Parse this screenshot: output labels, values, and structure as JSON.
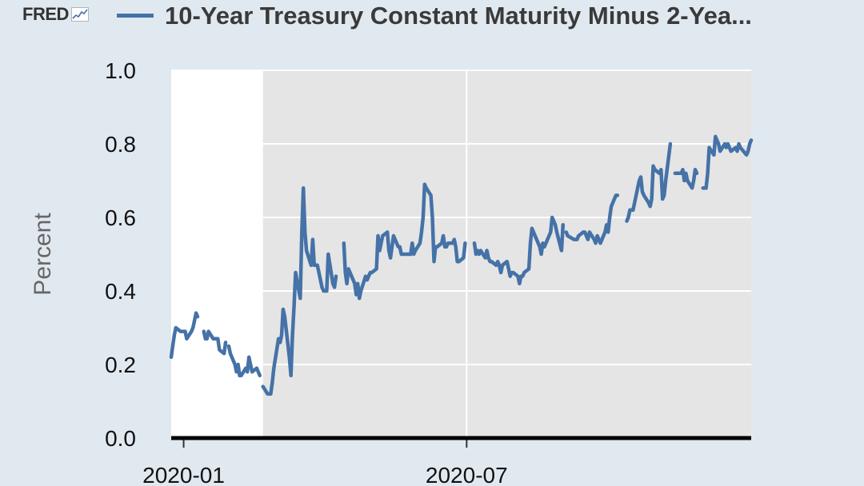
{
  "header": {
    "logo": "FRED",
    "logo_icon": "line-chart-icon",
    "title": "10-Year Treasury Constant Maturity Minus 2-Yea..."
  },
  "colors": {
    "background": "#e1e9f0",
    "plot_white": "#ffffff",
    "plot_shade": "#e5e5e5",
    "series": "#4572a7",
    "grid": "#ffffff",
    "axis": "#000000"
  },
  "chart_data": {
    "type": "line",
    "title": "10-Year Treasury Constant Maturity Minus 2-Yea...",
    "xlabel": "",
    "ylabel": "Percent",
    "ylim": [
      0,
      1.0
    ],
    "yticks": [
      "0.0",
      "0.2",
      "0.4",
      "0.6",
      "0.8",
      "1.0"
    ],
    "xticks": [
      {
        "date": "2020-01-01",
        "label": "2020-01"
      },
      {
        "date": "2020-07-01",
        "label": "2020-07"
      }
    ],
    "xlim": [
      "2019-12-24",
      "2020-12-31"
    ],
    "grid": true,
    "shaded_region": {
      "start": "2020-02-21",
      "end": "2020-12-31",
      "label": ""
    },
    "series": [
      {
        "values_description": "daily spread",
        "points": [
          [
            "2019-12-24",
            0.22
          ],
          [
            "2019-12-25",
            0.25
          ],
          [
            "2019-12-26",
            0.28
          ],
          [
            "2019-12-27",
            0.3
          ],
          [
            "2019-12-30",
            0.29
          ],
          [
            "2019-12-31",
            0.29
          ],
          [
            "2020-01-02",
            0.29
          ],
          [
            "2020-01-03",
            0.27
          ],
          [
            "2020-01-06",
            0.29
          ],
          [
            "2020-01-07",
            0.3
          ],
          [
            "2020-01-08",
            0.32
          ],
          [
            "2020-01-09",
            0.34
          ],
          [
            "2020-01-10",
            0.33
          ],
          [
            "2020-01-13",
            null
          ],
          [
            "2020-01-14",
            0.29
          ],
          [
            "2020-01-15",
            0.27
          ],
          [
            "2020-01-16",
            0.27
          ],
          [
            "2020-01-17",
            0.29
          ],
          [
            "2020-01-20",
            0.27
          ],
          [
            "2020-01-21",
            0.27
          ],
          [
            "2020-01-22",
            0.27
          ],
          [
            "2020-01-23",
            0.27
          ],
          [
            "2020-01-24",
            0.24
          ],
          [
            "2020-01-27",
            0.23
          ],
          [
            "2020-01-28",
            0.26
          ],
          [
            "2020-01-29",
            null
          ],
          [
            "2020-01-30",
            0.25
          ],
          [
            "2020-01-31",
            0.23
          ],
          [
            "2020-02-03",
            0.2
          ],
          [
            "2020-02-04",
            0.18
          ],
          [
            "2020-02-05",
            0.2
          ],
          [
            "2020-02-06",
            0.17
          ],
          [
            "2020-02-07",
            0.17
          ],
          [
            "2020-02-10",
            0.19
          ],
          [
            "2020-02-11",
            0.18
          ],
          [
            "2020-02-12",
            0.22
          ],
          [
            "2020-02-13",
            0.2
          ],
          [
            "2020-02-14",
            0.18
          ],
          [
            "2020-02-17",
            0.19
          ],
          [
            "2020-02-18",
            0.18
          ],
          [
            "2020-02-19",
            0.17
          ],
          [
            "2020-02-20",
            null
          ],
          [
            "2020-02-21",
            0.14
          ],
          [
            "2020-02-24",
            0.12
          ],
          [
            "2020-02-25",
            0.12
          ],
          [
            "2020-02-26",
            0.12
          ],
          [
            "2020-02-27",
            0.15
          ],
          [
            "2020-02-28",
            0.19
          ],
          [
            "2020-03-02",
            0.27
          ],
          [
            "2020-03-03",
            0.26
          ],
          [
            "2020-03-04",
            0.28
          ],
          [
            "2020-03-05",
            0.35
          ],
          [
            "2020-03-06",
            0.33
          ],
          [
            "2020-03-09",
            0.22
          ],
          [
            "2020-03-10",
            0.17
          ],
          [
            "2020-03-11",
            0.28
          ],
          [
            "2020-03-12",
            0.36
          ],
          [
            "2020-03-13",
            0.45
          ],
          [
            "2020-03-16",
            0.38
          ],
          [
            "2020-03-17",
            0.56
          ],
          [
            "2020-03-18",
            0.68
          ],
          [
            "2020-03-19",
            0.56
          ],
          [
            "2020-03-20",
            0.51
          ],
          [
            "2020-03-23",
            0.47
          ],
          [
            "2020-03-24",
            0.54
          ],
          [
            "2020-03-25",
            0.47
          ],
          [
            "2020-03-26",
            0.47
          ],
          [
            "2020-03-27",
            0.47
          ],
          [
            "2020-03-30",
            0.41
          ],
          [
            "2020-03-31",
            0.4
          ],
          [
            "2020-04-01",
            0.4
          ],
          [
            "2020-04-02",
            0.4
          ],
          [
            "2020-04-03",
            0.5
          ],
          [
            "2020-04-06",
            0.42
          ],
          [
            "2020-04-07",
            0.41
          ],
          [
            "2020-04-08",
            0.44
          ],
          [
            "2020-04-09",
            null
          ],
          [
            "2020-04-13",
            0.53
          ],
          [
            "2020-04-14",
            0.45
          ],
          [
            "2020-04-15",
            0.42
          ],
          [
            "2020-04-16",
            0.46
          ],
          [
            "2020-04-17",
            0.45
          ],
          [
            "2020-04-20",
            0.42
          ],
          [
            "2020-04-21",
            0.39
          ],
          [
            "2020-04-22",
            0.42
          ],
          [
            "2020-04-23",
            0.38
          ],
          [
            "2020-04-24",
            0.4
          ],
          [
            "2020-04-27",
            0.44
          ],
          [
            "2020-04-28",
            0.43
          ],
          [
            "2020-04-29",
            0.44
          ],
          [
            "2020-04-30",
            0.45
          ],
          [
            "2020-05-01",
            0.45
          ],
          [
            "2020-05-04",
            0.46
          ],
          [
            "2020-05-05",
            0.55
          ],
          [
            "2020-05-06",
            0.51
          ],
          [
            "2020-05-07",
            0.53
          ],
          [
            "2020-05-08",
            0.55
          ],
          [
            "2020-05-11",
            0.56
          ],
          [
            "2020-05-12",
            0.51
          ],
          [
            "2020-05-13",
            0.49
          ],
          [
            "2020-05-14",
            0.52
          ],
          [
            "2020-05-15",
            0.55
          ],
          [
            "2020-05-18",
            0.52
          ],
          [
            "2020-05-19",
            0.52
          ],
          [
            "2020-05-20",
            0.5
          ],
          [
            "2020-05-21",
            0.5
          ],
          [
            "2020-05-22",
            0.5
          ],
          [
            "2020-05-26",
            0.5
          ],
          [
            "2020-05-27",
            0.53
          ],
          [
            "2020-05-28",
            0.5
          ],
          [
            "2020-05-29",
            0.51
          ],
          [
            "2020-06-01",
            0.53
          ],
          [
            "2020-06-02",
            0.56
          ],
          [
            "2020-06-03",
            0.6
          ],
          [
            "2020-06-04",
            0.69
          ],
          [
            "2020-06-05",
            0.68
          ],
          [
            "2020-06-08",
            0.66
          ],
          [
            "2020-06-09",
            0.6
          ],
          [
            "2020-06-10",
            0.48
          ],
          [
            "2020-06-11",
            0.52
          ],
          [
            "2020-06-12",
            0.52
          ],
          [
            "2020-06-15",
            0.53
          ],
          [
            "2020-06-16",
            0.55
          ],
          [
            "2020-06-17",
            0.52
          ],
          [
            "2020-06-18",
            0.52
          ],
          [
            "2020-06-19",
            0.53
          ],
          [
            "2020-06-22",
            0.53
          ],
          [
            "2020-06-23",
            0.54
          ],
          [
            "2020-06-24",
            0.52
          ],
          [
            "2020-06-25",
            0.48
          ],
          [
            "2020-06-26",
            0.48
          ],
          [
            "2020-06-29",
            0.49
          ],
          [
            "2020-06-30",
            0.53
          ],
          [
            "2020-07-01",
            null
          ],
          [
            "2020-07-06",
            0.53
          ],
          [
            "2020-07-07",
            0.5
          ],
          [
            "2020-07-08",
            0.51
          ],
          [
            "2020-07-09",
            0.5
          ],
          [
            "2020-07-10",
            0.51
          ],
          [
            "2020-07-13",
            0.49
          ],
          [
            "2020-07-14",
            0.51
          ],
          [
            "2020-07-15",
            0.49
          ],
          [
            "2020-07-16",
            0.48
          ],
          [
            "2020-07-17",
            0.48
          ],
          [
            "2020-07-20",
            0.47
          ],
          [
            "2020-07-21",
            0.48
          ],
          [
            "2020-07-22",
            0.47
          ],
          [
            "2020-07-23",
            0.45
          ],
          [
            "2020-07-24",
            0.47
          ],
          [
            "2020-07-27",
            0.48
          ],
          [
            "2020-07-28",
            0.46
          ],
          [
            "2020-07-29",
            0.44
          ],
          [
            "2020-07-30",
            0.45
          ],
          [
            "2020-07-31",
            0.45
          ],
          [
            "2020-08-03",
            0.44
          ],
          [
            "2020-08-04",
            0.42
          ],
          [
            "2020-08-05",
            0.44
          ],
          [
            "2020-08-06",
            0.44
          ],
          [
            "2020-08-07",
            0.45
          ],
          [
            "2020-08-10",
            0.46
          ],
          [
            "2020-08-11",
            0.53
          ],
          [
            "2020-08-12",
            0.57
          ],
          [
            "2020-08-13",
            0.56
          ],
          [
            "2020-08-14",
            0.55
          ],
          [
            "2020-08-17",
            0.52
          ],
          [
            "2020-08-18",
            0.5
          ],
          [
            "2020-08-19",
            0.53
          ],
          [
            "2020-08-20",
            0.52
          ],
          [
            "2020-08-21",
            0.53
          ],
          [
            "2020-08-24",
            0.56
          ],
          [
            "2020-08-25",
            0.6
          ],
          [
            "2020-08-26",
            0.59
          ],
          [
            "2020-08-27",
            0.58
          ],
          [
            "2020-08-28",
            0.56
          ],
          [
            "2020-08-31",
            0.51
          ],
          [
            "2020-09-01",
            0.58
          ],
          [
            "2020-09-02",
            null
          ],
          [
            "2020-09-03",
            0.56
          ],
          [
            "2020-09-04",
            0.55
          ],
          [
            "2020-09-08",
            0.54
          ],
          [
            "2020-09-09",
            0.54
          ],
          [
            "2020-09-10",
            0.54
          ],
          [
            "2020-09-11",
            0.55
          ],
          [
            "2020-09-14",
            0.56
          ],
          [
            "2020-09-15",
            0.56
          ],
          [
            "2020-09-16",
            0.55
          ],
          [
            "2020-09-17",
            0.54
          ],
          [
            "2020-09-18",
            0.56
          ],
          [
            "2020-09-21",
            0.54
          ],
          [
            "2020-09-22",
            0.53
          ],
          [
            "2020-09-23",
            0.55
          ],
          [
            "2020-09-24",
            0.54
          ],
          [
            "2020-09-25",
            0.53
          ],
          [
            "2020-09-28",
            0.56
          ],
          [
            "2020-09-29",
            0.58
          ],
          [
            "2020-09-30",
            0.56
          ],
          [
            "2020-10-01",
            0.6
          ],
          [
            "2020-10-02",
            0.63
          ],
          [
            "2020-10-05",
            0.66
          ],
          [
            "2020-10-06",
            0.66
          ],
          [
            "2020-10-07",
            null
          ],
          [
            "2020-10-12",
            0.59
          ],
          [
            "2020-10-13",
            0.6
          ],
          [
            "2020-10-14",
            0.62
          ],
          [
            "2020-10-15",
            0.62
          ],
          [
            "2020-10-16",
            0.62
          ],
          [
            "2020-10-19",
            0.68
          ],
          [
            "2020-10-20",
            0.7
          ],
          [
            "2020-10-21",
            0.71
          ],
          [
            "2020-10-22",
            0.67
          ],
          [
            "2020-10-23",
            0.66
          ],
          [
            "2020-10-26",
            0.64
          ],
          [
            "2020-10-27",
            0.63
          ],
          [
            "2020-10-28",
            0.65
          ],
          [
            "2020-10-29",
            0.74
          ],
          [
            "2020-10-30",
            0.73
          ],
          [
            "2020-11-02",
            0.72
          ],
          [
            "2020-11-03",
            0.73
          ],
          [
            "2020-11-04",
            0.65
          ],
          [
            "2020-11-05",
            0.66
          ],
          [
            "2020-11-06",
            0.7
          ],
          [
            "2020-11-09",
            0.8
          ],
          [
            "2020-11-10",
            null
          ],
          [
            "2020-11-12",
            0.72
          ],
          [
            "2020-11-13",
            0.72
          ],
          [
            "2020-11-16",
            0.72
          ],
          [
            "2020-11-17",
            0.73
          ],
          [
            "2020-11-18",
            0.7
          ],
          [
            "2020-11-19",
            0.72
          ],
          [
            "2020-11-20",
            0.7
          ],
          [
            "2020-11-23",
            0.68
          ],
          [
            "2020-11-24",
            0.7
          ],
          [
            "2020-11-25",
            0.73
          ],
          [
            "2020-11-26",
            0.72
          ],
          [
            "2020-11-27",
            null
          ],
          [
            "2020-11-30",
            0.68
          ],
          [
            "2020-12-01",
            0.68
          ],
          [
            "2020-12-02",
            0.68
          ],
          [
            "2020-12-03",
            0.72
          ],
          [
            "2020-12-04",
            0.79
          ],
          [
            "2020-12-07",
            0.77
          ],
          [
            "2020-12-08",
            0.82
          ],
          [
            "2020-12-09",
            0.81
          ],
          [
            "2020-12-10",
            0.8
          ],
          [
            "2020-12-11",
            0.78
          ],
          [
            "2020-12-14",
            0.8
          ],
          [
            "2020-12-15",
            0.79
          ],
          [
            "2020-12-16",
            0.8
          ],
          [
            "2020-12-17",
            0.79
          ],
          [
            "2020-12-18",
            0.78
          ],
          [
            "2020-12-21",
            0.79
          ],
          [
            "2020-12-22",
            0.78
          ],
          [
            "2020-12-23",
            0.8
          ],
          [
            "2020-12-24",
            0.79
          ],
          [
            "2020-12-28",
            0.77
          ],
          [
            "2020-12-29",
            0.78
          ],
          [
            "2020-12-30",
            0.8
          ],
          [
            "2020-12-31",
            0.81
          ]
        ]
      }
    ]
  }
}
